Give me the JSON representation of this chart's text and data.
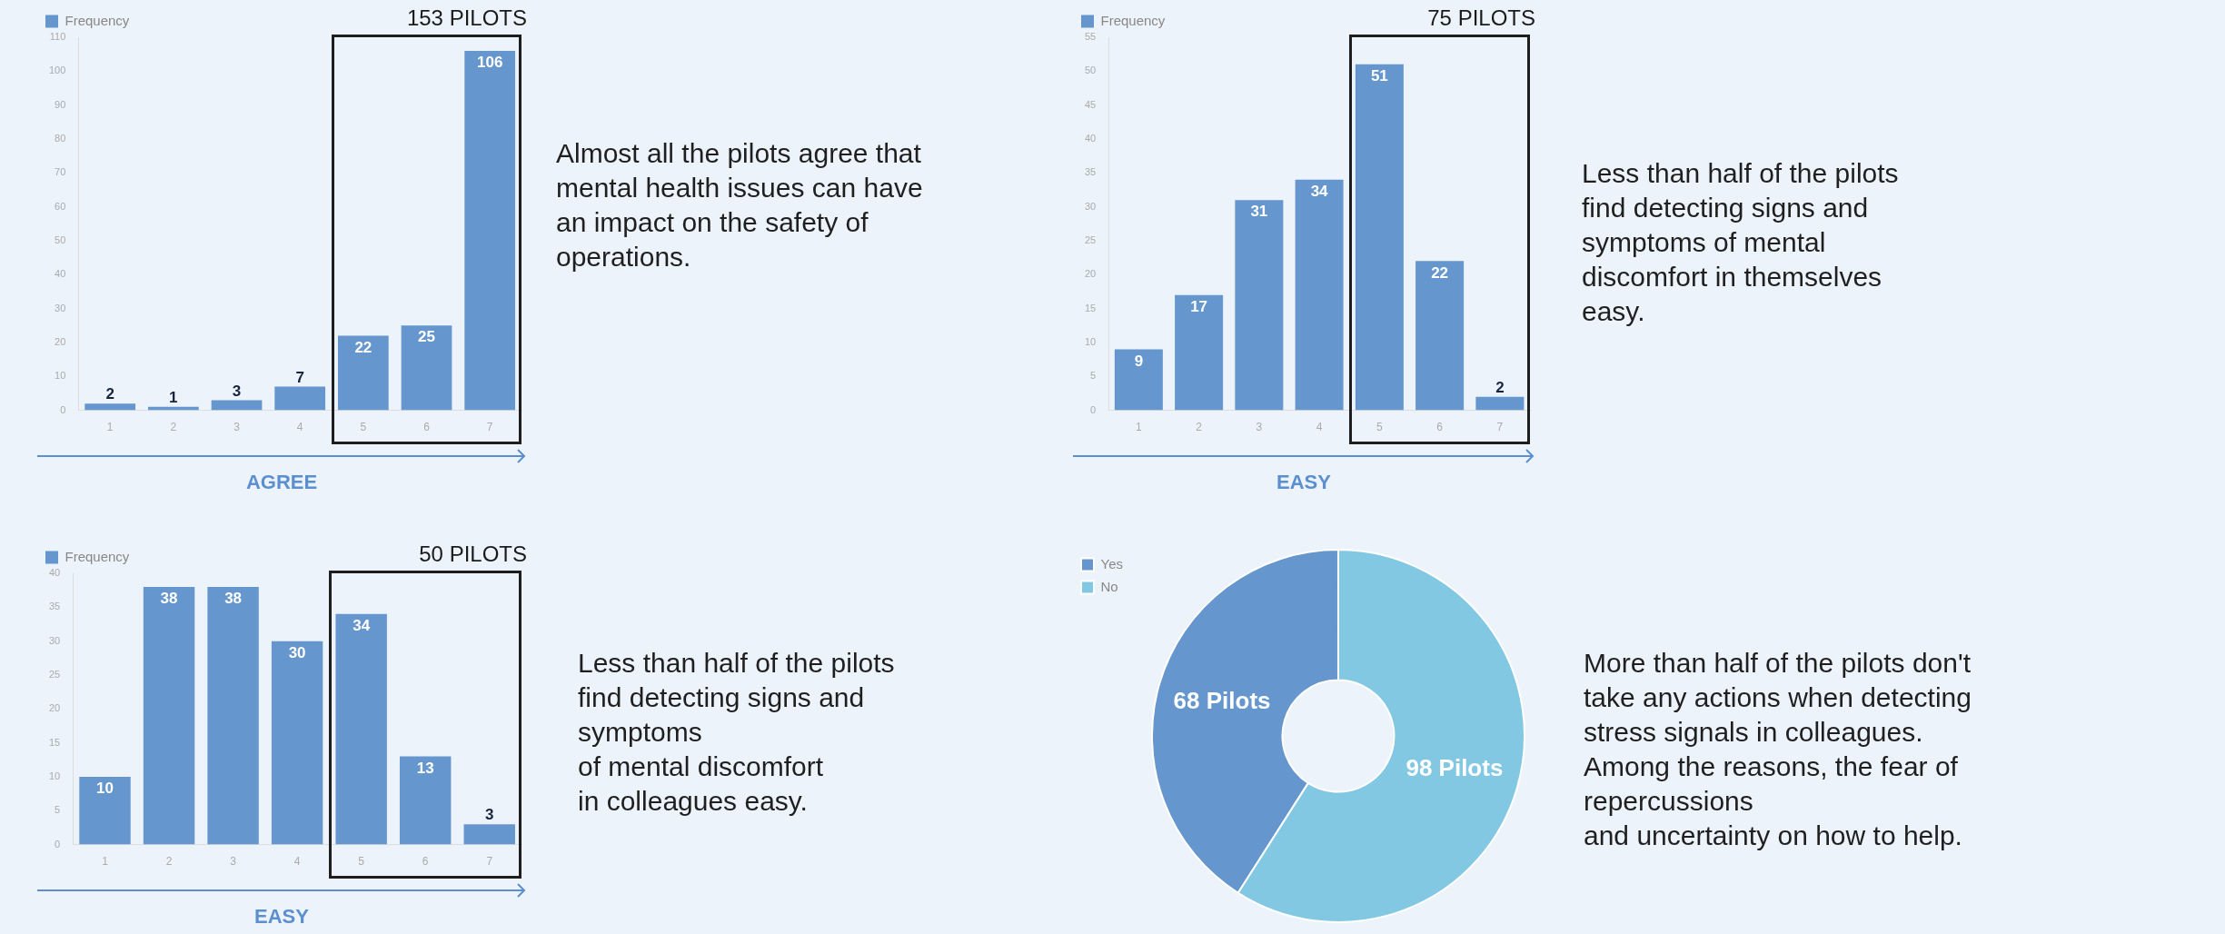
{
  "chart_data": [
    {
      "type": "bar",
      "title": "153 PILOTS",
      "xlabel": "AGREE",
      "categories": [
        "1",
        "2",
        "3",
        "4",
        "5",
        "6",
        "7"
      ],
      "series": [
        {
          "name": "Frequency",
          "color": "#6596cd",
          "values": [
            2,
            1,
            3,
            7,
            22,
            25,
            106
          ]
        }
      ],
      "ylim": [
        0,
        110
      ],
      "yticks": [
        0,
        10,
        20,
        30,
        40,
        50,
        60,
        70,
        80,
        90,
        100,
        110
      ],
      "grid": false,
      "legend": "top left",
      "data_labels": true,
      "annotations": [
        "Almost all the pilots agree that\nmental health issues can have\nan impact on the safety of\noperations."
      ]
    },
    {
      "type": "bar",
      "title": "75 PILOTS",
      "xlabel": "EASY",
      "categories": [
        "1",
        "2",
        "3",
        "4",
        "5",
        "6",
        "7"
      ],
      "series": [
        {
          "name": "Frequency",
          "color": "#6596cd",
          "values": [
            9,
            17,
            31,
            34,
            51,
            22,
            2
          ]
        }
      ],
      "ylim": [
        0,
        55
      ],
      "yticks": [
        0,
        5,
        10,
        15,
        20,
        25,
        30,
        35,
        40,
        45,
        50,
        55
      ],
      "grid": false,
      "legend": "top left",
      "data_labels": true,
      "annotations": [
        "Less than half of the pilots\nfind detecting signs and\nsymptoms of mental\ndiscomfort in themselves\neasy."
      ]
    },
    {
      "type": "bar",
      "title": "50 PILOTS",
      "xlabel": "EASY",
      "categories": [
        "1",
        "2",
        "3",
        "4",
        "5",
        "6",
        "7"
      ],
      "series": [
        {
          "name": "Frequency",
          "color": "#6596cd",
          "values": [
            10,
            38,
            38,
            30,
            34,
            13,
            3
          ]
        }
      ],
      "ylim": [
        0,
        40
      ],
      "yticks": [
        0,
        5,
        10,
        15,
        20,
        25,
        30,
        35,
        40
      ],
      "grid": false,
      "legend": "top left",
      "data_labels": true,
      "annotations": [
        "Less than half of the pilots\nfind detecting signs and\nsymptoms\nof mental discomfort\nin colleagues easy."
      ]
    },
    {
      "type": "donut",
      "categories": [
        "Yes",
        "No"
      ],
      "values": [
        68,
        98
      ],
      "colors": [
        "#6596cd",
        "#82c8e2"
      ],
      "value_labels": [
        "68 Pilots",
        "98 Pilots"
      ],
      "legend": "top left",
      "annotations": [
        "More than half of the pilots don't\ntake any actions when detecting\nstress signals in colleagues.\nAmong the reasons, the fear of\nrepercussions\nand uncertainty on how to help."
      ]
    }
  ]
}
